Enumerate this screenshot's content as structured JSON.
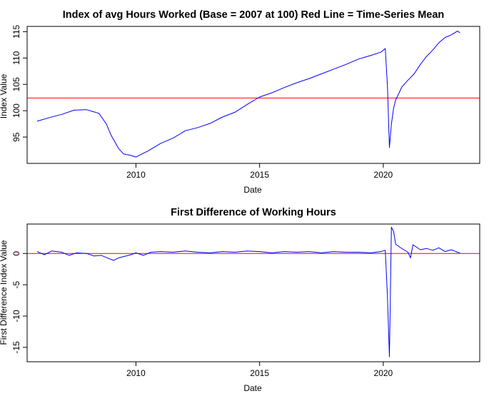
{
  "chart_data": [
    {
      "type": "line",
      "title": "Index of avg Hours Worked (Base = 2007 at 100) Red Line = Time-Series Mean",
      "xlabel": "Date",
      "ylabel": "Index Value",
      "xlim": [
        2005.6,
        2023.9
      ],
      "ylim": [
        90,
        116
      ],
      "xticks": [
        2010,
        2015,
        2020
      ],
      "yticks": [
        95,
        100,
        105,
        110,
        115
      ],
      "grid": false,
      "line_color": "#0000ff",
      "reference_line": {
        "value": 102.4,
        "color": "#ff0000"
      },
      "series": [
        {
          "x": [
            2006.0,
            2006.5,
            2007.0,
            2007.5,
            2008.0,
            2008.5,
            2008.8,
            2009.0,
            2009.3,
            2009.5,
            2009.8,
            2010.0,
            2010.5,
            2011.0,
            2011.5,
            2012.0,
            2012.5,
            2013.0,
            2013.5,
            2014.0,
            2014.5,
            2015.0,
            2015.5,
            2016.0,
            2016.5,
            2017.0,
            2017.5,
            2018.0,
            2018.5,
            2019.0,
            2019.5,
            2019.9,
            2020.08,
            2020.17,
            2020.25,
            2020.33,
            2020.42,
            2020.5,
            2020.75,
            2021.0,
            2021.25,
            2021.5,
            2021.75,
            2022.0,
            2022.25,
            2022.5,
            2022.75,
            2023.0,
            2023.1
          ],
          "y": [
            98.0,
            98.7,
            99.3,
            100.1,
            100.2,
            99.5,
            97.5,
            95.3,
            92.8,
            91.8,
            91.5,
            91.2,
            92.4,
            93.8,
            94.8,
            96.2,
            96.8,
            97.6,
            98.8,
            99.7,
            101.2,
            102.6,
            103.4,
            104.4,
            105.3,
            106.1,
            107.0,
            107.9,
            108.8,
            109.8,
            110.5,
            111.1,
            111.8,
            104.5,
            93.0,
            97.5,
            100.5,
            102.0,
            104.5,
            105.8,
            107.0,
            108.8,
            110.3,
            111.5,
            112.9,
            113.9,
            114.4,
            115.1,
            114.8
          ]
        }
      ]
    },
    {
      "type": "line",
      "title": "First Difference of Working Hours",
      "xlabel": "Date",
      "ylabel": "First Difference Index Value",
      "xlim": [
        2005.6,
        2023.9
      ],
      "ylim": [
        -17.3,
        4.7
      ],
      "xticks": [
        2010,
        2015,
        2020
      ],
      "yticks": [
        0,
        -5,
        -10,
        -15
      ],
      "grid": false,
      "line_color": "#0000ff",
      "reference_line": {
        "value": 0,
        "color": "#ff0000"
      },
      "series": [
        {
          "x": [
            2006.0,
            2006.3,
            2006.6,
            2007.0,
            2007.3,
            2007.6,
            2008.0,
            2008.3,
            2008.6,
            2008.9,
            2009.1,
            2009.3,
            2009.5,
            2009.8,
            2010.0,
            2010.3,
            2010.6,
            2011.0,
            2011.5,
            2012.0,
            2012.5,
            2013.0,
            2013.5,
            2014.0,
            2014.5,
            2015.0,
            2015.5,
            2016.0,
            2016.5,
            2017.0,
            2017.5,
            2018.0,
            2018.5,
            2019.0,
            2019.5,
            2019.9,
            2020.08,
            2020.17,
            2020.25,
            2020.33,
            2020.42,
            2020.5,
            2020.67,
            2020.83,
            2021.0,
            2021.1,
            2021.2,
            2021.5,
            2021.75,
            2022.0,
            2022.25,
            2022.5,
            2022.75,
            2023.0,
            2023.1
          ],
          "y": [
            0.3,
            -0.2,
            0.4,
            0.2,
            -0.3,
            0.1,
            0.0,
            -0.4,
            -0.3,
            -0.8,
            -1.1,
            -0.7,
            -0.5,
            -0.2,
            0.1,
            -0.3,
            0.2,
            0.3,
            0.2,
            0.4,
            0.2,
            0.1,
            0.3,
            0.2,
            0.4,
            0.3,
            0.1,
            0.3,
            0.2,
            0.3,
            0.1,
            0.3,
            0.2,
            0.2,
            0.1,
            0.3,
            0.5,
            -7.0,
            -16.5,
            4.2,
            3.5,
            1.5,
            1.0,
            0.6,
            0.2,
            -0.7,
            1.4,
            0.6,
            0.8,
            0.5,
            0.9,
            0.3,
            0.6,
            0.2,
            0.1
          ]
        }
      ]
    }
  ]
}
